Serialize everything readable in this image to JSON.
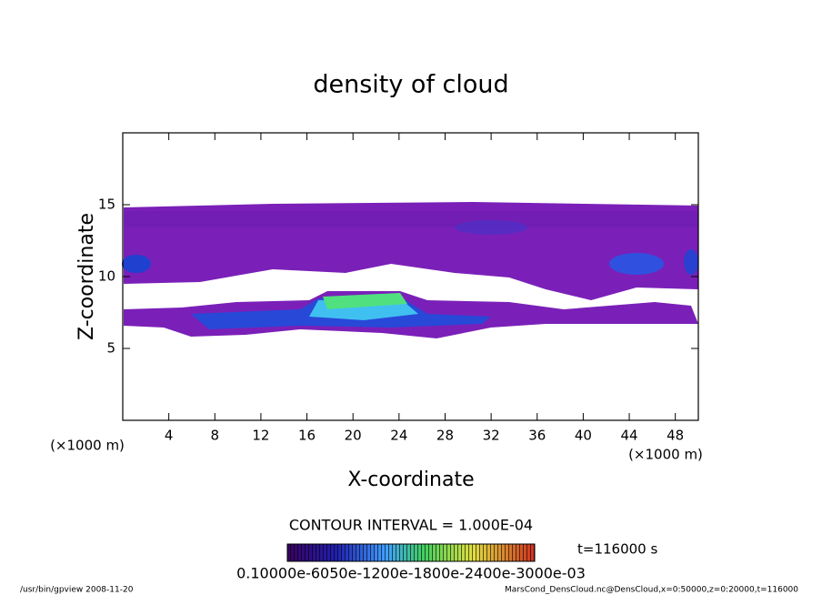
{
  "chart_data": {
    "type": "contour",
    "title": "density of cloud",
    "xlabel": "X-coordinate",
    "ylabel": "Z-coordinate",
    "xunit": "(×1000 m)",
    "yunit": "(×1000 m)",
    "xlim": [
      0,
      50
    ],
    "xticks": [
      4,
      8,
      12,
      16,
      20,
      24,
      28,
      32,
      36,
      40,
      44,
      48
    ],
    "ylim": [
      0,
      20
    ],
    "yticks": [
      5,
      10,
      15
    ],
    "contour_interval": "CONTOUR INTERVAL = 1.000E-04",
    "colorbar_labels": "0.10000e-6050e-1200e-1800e-2400e-3000e-03",
    "time": "t=116000 s",
    "footer_left": "/usr/bin/gpview  2008-11-20",
    "footer_right": "MarsCond_DensCloud.nc@DensCloud,x=0:50000,z=0:20000,t=116000"
  }
}
